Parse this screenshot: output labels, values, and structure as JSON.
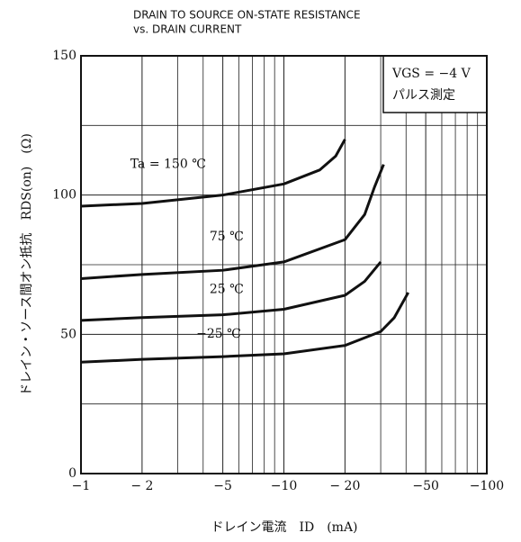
{
  "chart_data": {
    "type": "line",
    "title": [
      "DRAIN TO SOURCE ON-STATE RESISTANCE",
      "vs. DRAIN CURRENT"
    ],
    "x_label": "ドレイン電流　ID　(mA)",
    "y_label": "ドレイン・ソース間オン抵抗　RDS(on)　(Ω)",
    "legend_box": [
      "VGS = −4 V",
      "パルス測定"
    ],
    "xscale": "log",
    "xlim": [
      -1,
      -100
    ],
    "xticks": [
      {
        "value": -1,
        "label": "−1"
      },
      {
        "value": -2,
        "label": "− 2"
      },
      {
        "value": -5,
        "label": "−5"
      },
      {
        "value": -10,
        "label": "−10"
      },
      {
        "value": -20,
        "label": "− 20"
      },
      {
        "value": -50,
        "label": "−50"
      },
      {
        "value": -100,
        "label": "−100"
      }
    ],
    "xminor": [
      -3,
      -4,
      -6,
      -7,
      -8,
      -9,
      -30,
      -40,
      -60,
      -70,
      -80,
      -90
    ],
    "ylim": [
      0,
      150
    ],
    "yticks": [
      0,
      50,
      100,
      150
    ],
    "yminor": [
      25,
      75,
      125
    ],
    "grid": true,
    "color": "#111111",
    "series": [
      {
        "name": "Ta = 150 ℃",
        "x": [
          -1,
          -2,
          -5,
          -10,
          -15,
          -18,
          -20
        ],
        "values": [
          96,
          97,
          100,
          104,
          109,
          114,
          120
        ]
      },
      {
        "name": "75 ℃",
        "x": [
          -1,
          -2,
          -5,
          -10,
          -20,
          -25,
          -28,
          -31
        ],
        "values": [
          70,
          71.5,
          73,
          76,
          84,
          93,
          103,
          111
        ]
      },
      {
        "name": "25 ℃",
        "x": [
          -1,
          -2,
          -5,
          -10,
          -20,
          -25,
          -30
        ],
        "values": [
          55,
          56,
          57,
          59,
          64,
          69,
          76
        ]
      },
      {
        "name": "−25 ℃",
        "x": [
          -1,
          -2,
          -5,
          -10,
          -20,
          -30,
          -35,
          -41
        ],
        "values": [
          40,
          41,
          42,
          43,
          46,
          51,
          56,
          65
        ]
      }
    ]
  }
}
